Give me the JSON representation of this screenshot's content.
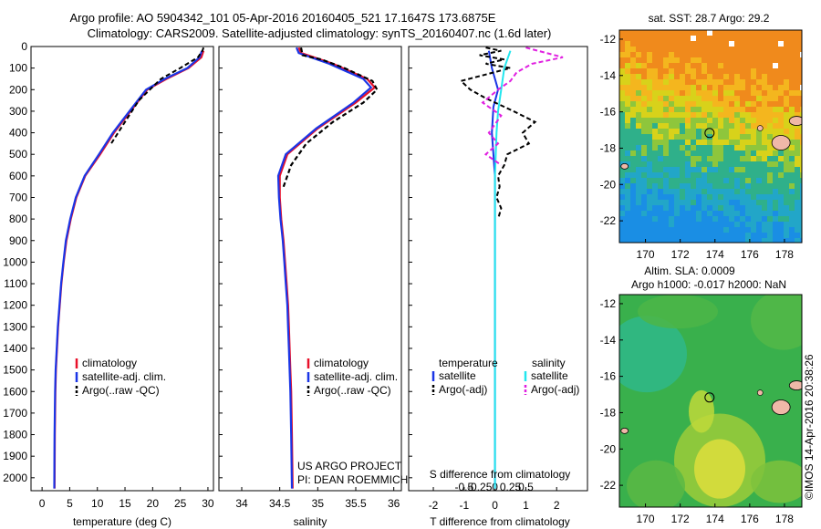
{
  "header": {
    "line1": "Argo profile: AO 5904342_101 05-Apr-2016 20160405_521 17.1647S 173.6875E",
    "line2": "Climatology: CARS2009. Satellite-adjusted climatology: synTS_20160407.nc (1.6d later)"
  },
  "colors": {
    "climatology": "#e8102a",
    "satellite": "#1a35e6",
    "argo": "#000000",
    "sat_salinity": "#22e6ee",
    "argo_salinity": "#e020e0"
  },
  "chart_data": [
    {
      "id": "temperature",
      "type": "line",
      "xlabel": "temperature (deg C)",
      "ylabel": "",
      "xlim": [
        -2,
        31
      ],
      "ylim": [
        2060,
        0
      ],
      "xticks": [
        0,
        5,
        10,
        15,
        20,
        25,
        30
      ],
      "yticks": [
        0,
        100,
        200,
        300,
        400,
        500,
        600,
        700,
        800,
        900,
        1000,
        1100,
        1200,
        1300,
        1400,
        1500,
        1600,
        1700,
        1800,
        1900,
        2000
      ],
      "legend": [
        "climatology",
        "satellite-adj. clim.",
        "Argo(..raw -QC)"
      ],
      "series": [
        {
          "name": "climatology",
          "x": [
            29.2,
            28.8,
            26.5,
            22.5,
            19.0,
            16.0,
            13.0,
            10.5,
            7.8,
            6.2,
            5.2,
            4.4,
            3.9,
            3.5,
            3.2,
            2.9,
            2.7,
            2.5,
            2.4,
            2.3,
            2.25
          ],
          "y": [
            20,
            50,
            100,
            150,
            200,
            300,
            400,
            500,
            600,
            700,
            800,
            900,
            1000,
            1100,
            1200,
            1300,
            1400,
            1500,
            1600,
            1800,
            2050
          ]
        },
        {
          "name": "satellite-adj. clim.",
          "x": [
            28.9,
            28.5,
            26.3,
            22.2,
            18.8,
            15.8,
            12.8,
            10.3,
            7.7,
            6.1,
            5.1,
            4.3,
            3.85,
            3.45,
            3.15,
            2.85,
            2.65,
            2.45,
            2.35,
            2.25,
            2.2
          ],
          "y": [
            20,
            50,
            100,
            150,
            200,
            300,
            400,
            500,
            600,
            700,
            800,
            900,
            1000,
            1100,
            1200,
            1300,
            1400,
            1500,
            1600,
            1800,
            2050
          ]
        },
        {
          "name": "Argo(..raw -QC)",
          "x": [
            29.2,
            29.0,
            28.2,
            25.0,
            21.5,
            17.5,
            15.0,
            12.5
          ],
          "y": [
            5,
            20,
            50,
            100,
            150,
            250,
            350,
            450
          ]
        }
      ]
    },
    {
      "id": "salinity",
      "type": "line",
      "xlabel": "salinity",
      "xlim": [
        33.7,
        36.1
      ],
      "ylim": [
        2060,
        0
      ],
      "xticks": [
        34,
        34.5,
        35,
        35.5,
        36
      ],
      "legend": [
        "climatology",
        "satellite-adj. clim.",
        "Argo(..raw -QC)"
      ],
      "series": [
        {
          "name": "climatology",
          "x": [
            34.75,
            34.78,
            35.2,
            35.65,
            35.75,
            35.5,
            35.0,
            34.6,
            34.5,
            34.5,
            34.52,
            34.55,
            34.57,
            34.59,
            34.61,
            34.62,
            34.63,
            34.64,
            34.65,
            34.66,
            34.67
          ],
          "y": [
            5,
            30,
            80,
            150,
            190,
            260,
            380,
            500,
            600,
            700,
            800,
            900,
            1000,
            1100,
            1200,
            1300,
            1400,
            1500,
            1600,
            1800,
            2050
          ]
        },
        {
          "name": "satellite-adj. clim.",
          "x": [
            34.72,
            34.75,
            35.15,
            35.6,
            35.7,
            35.47,
            34.98,
            34.58,
            34.48,
            34.49,
            34.51,
            34.54,
            34.56,
            34.58,
            34.6,
            34.61,
            34.62,
            34.63,
            34.64,
            34.65,
            34.66
          ],
          "y": [
            5,
            30,
            80,
            150,
            190,
            260,
            380,
            500,
            600,
            700,
            800,
            900,
            1000,
            1100,
            1200,
            1300,
            1400,
            1500,
            1600,
            1800,
            2050
          ]
        },
        {
          "name": "Argo(..raw -QC)",
          "x": [
            34.78,
            34.8,
            35.05,
            35.35,
            35.72,
            35.78,
            35.6,
            35.2,
            34.85,
            34.65,
            34.55
          ],
          "y": [
            5,
            40,
            60,
            100,
            160,
            200,
            260,
            350,
            450,
            550,
            650
          ]
        }
      ],
      "annotation": {
        "line1": "US ARGO PROJECT",
        "line2": "PI: DEAN ROEMMICH"
      }
    },
    {
      "id": "difference",
      "type": "line",
      "xlabel": "T difference from climatology",
      "top_label": "S difference from climatology",
      "xlim": [
        -2.8,
        3.0
      ],
      "ylim": [
        2060,
        0
      ],
      "xticks": [
        -2,
        -1,
        0,
        1,
        2
      ],
      "s_ticks": [
        "-0.5",
        "-0.25",
        "0",
        "0.25",
        "0.5"
      ],
      "legend_titles": [
        "temperature",
        "salinity"
      ],
      "legend": [
        "satellite",
        "Argo(-adj)",
        "satellite",
        "Argo(-adj)"
      ],
      "series": [
        {
          "name": "temperature satellite",
          "x": [
            -0.2,
            -0.1,
            0.1,
            -0.05,
            -0.1,
            -0.05,
            0,
            0,
            0,
            0,
            0,
            0
          ],
          "y": [
            20,
            100,
            200,
            280,
            400,
            500,
            600,
            800,
            1000,
            1400,
            1800,
            2050
          ]
        },
        {
          "name": "temperature Argo(-adj)",
          "x": [
            -0.3,
            0.2,
            -0.5,
            0.3,
            -0.3,
            0.5,
            -1.1,
            -0.8,
            -0.3,
            0.6,
            1.3,
            0.9,
            1.1,
            0.4,
            0.3,
            0.1,
            0.15,
            0.05,
            0.2,
            0.1
          ],
          "y": [
            5,
            20,
            40,
            60,
            80,
            100,
            160,
            200,
            240,
            300,
            350,
            400,
            450,
            500,
            550,
            600,
            650,
            700,
            750,
            800
          ]
        },
        {
          "name": "salinity satellite",
          "x": [
            0.5,
            0.3,
            0.2,
            0.1,
            0.05,
            0,
            0,
            0,
            0
          ],
          "y": [
            20,
            100,
            200,
            300,
            400,
            600,
            1000,
            1500,
            2050
          ]
        },
        {
          "name": "salinity Argo(-adj)",
          "x": [
            1.0,
            2.2,
            1.2,
            0.7,
            0.5,
            0.1,
            -0.4,
            0.2,
            -0.2,
            0.1,
            -0.3,
            0.2
          ],
          "y": [
            5,
            50,
            80,
            120,
            160,
            200,
            260,
            320,
            400,
            450,
            500,
            550
          ]
        }
      ]
    },
    {
      "id": "sst_map",
      "type": "heatmap",
      "title": "sat. SST: 28.7 Argo: 29.2",
      "xlim": [
        168.5,
        179
      ],
      "ylim": [
        -23.2,
        -11.5
      ],
      "xticks": [
        170,
        172,
        174,
        176,
        178
      ],
      "yticks": [
        -12,
        -14,
        -16,
        -18,
        -20,
        -22
      ],
      "argo_position": {
        "lon": 173.6875,
        "lat": -17.1647
      }
    },
    {
      "id": "sla_map",
      "type": "heatmap",
      "title_line1": "Altim. SLA: 0.0009",
      "title_line2": "Argo h1000: -0.017 h2000: NaN",
      "xlim": [
        168.5,
        179
      ],
      "ylim": [
        -23.2,
        -11.5
      ],
      "xticks": [
        170,
        172,
        174,
        176,
        178
      ],
      "yticks": [
        -12,
        -14,
        -16,
        -18,
        -20,
        -22
      ],
      "argo_position": {
        "lon": 173.6875,
        "lat": -17.1647
      }
    }
  ],
  "credit": "©IMOS 14-Apr-2016 20:38:26"
}
